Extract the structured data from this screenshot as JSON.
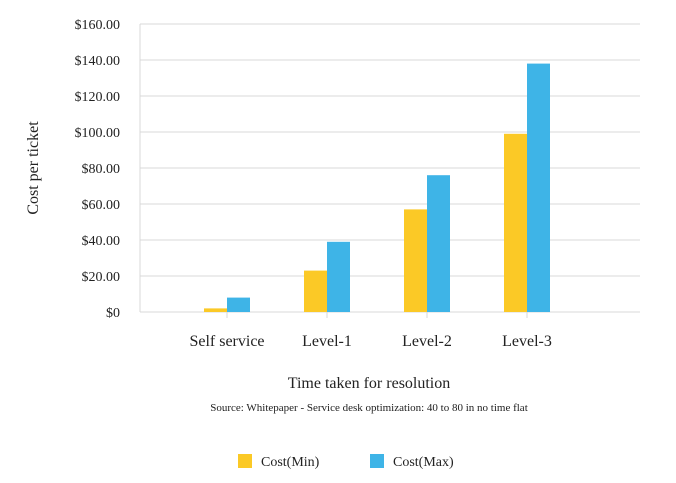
{
  "chart_data": {
    "type": "bar",
    "categories": [
      "Self service",
      "Level-1",
      "Level-2",
      "Level-3"
    ],
    "series": [
      {
        "name": "Cost(Min)",
        "values": [
          2,
          23,
          57,
          99
        ],
        "color": "#FBC926"
      },
      {
        "name": "Cost(Max)",
        "values": [
          8,
          39,
          76,
          138
        ],
        "color": "#3EB4E7"
      }
    ],
    "title": "",
    "xlabel": "Time taken for resolution",
    "ylabel": "Cost per ticket",
    "ylim": [
      0,
      160
    ],
    "yticks": [
      0,
      20,
      40,
      60,
      80,
      100,
      120,
      140,
      160
    ],
    "ytick_labels": [
      "$0",
      "$20.00",
      "$40.00",
      "$60.00",
      "$80.00",
      "$100.00",
      "$120.00",
      "$140.00",
      "$160.00"
    ],
    "grid": true,
    "legend_position": "bottom-center",
    "source_note": "Source: Whitepaper - Service desk optimization: 40 to 80 in no time flat",
    "gridline_color": "#d9d9d9"
  }
}
